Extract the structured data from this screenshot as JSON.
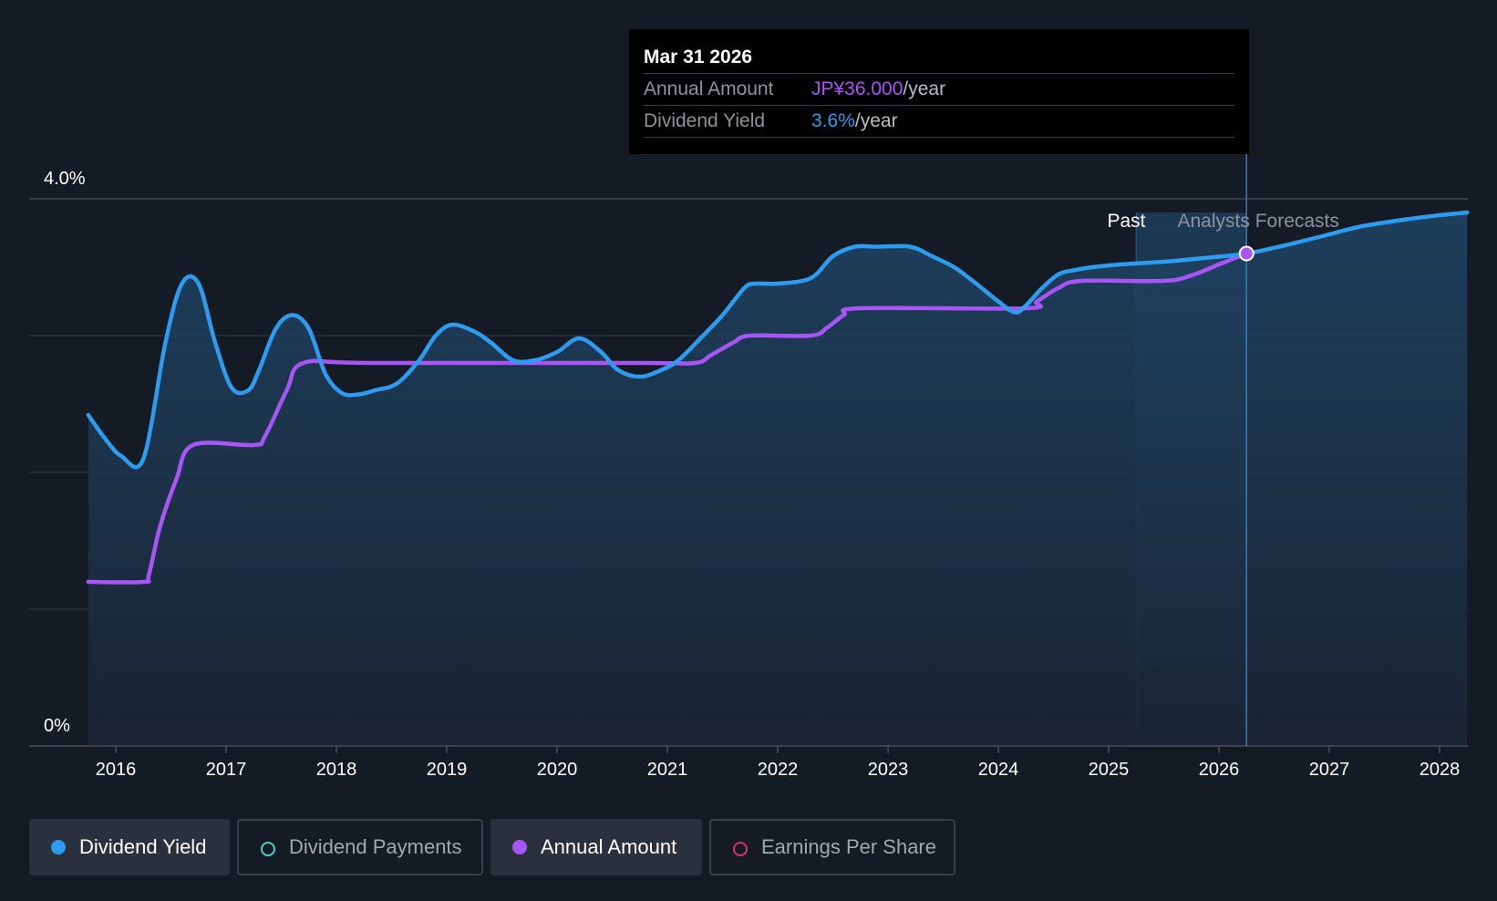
{
  "tooltip": {
    "date": "Mar 31 2026",
    "annual_label": "Annual Amount",
    "annual_value": "JP¥36.000",
    "annual_unit": "/year",
    "yield_label": "Dividend Yield",
    "yield_value": "3.6%",
    "yield_unit": "/year"
  },
  "legend": [
    {
      "label": "Dividend Yield",
      "active": true,
      "filled": true,
      "color": "#2d9cf0"
    },
    {
      "label": "Dividend Payments",
      "active": false,
      "filled": false,
      "color": "#4fd1c5"
    },
    {
      "label": "Annual Amount",
      "active": true,
      "filled": true,
      "color": "#a855f7"
    },
    {
      "label": "Earnings Per Share",
      "active": false,
      "filled": false,
      "color": "#d6336c"
    }
  ],
  "colors": {
    "background": "#151b25",
    "yield": "#2d9cf0",
    "annual": "#a855f7",
    "grid": "#2c3440",
    "axis": "#4a515c"
  },
  "chart_data": {
    "type": "line",
    "y_tick_labels": [
      "0%",
      "4.0%"
    ],
    "ylim": [
      0,
      4.0
    ],
    "xlim": [
      2015.75,
      2028.25
    ],
    "x_tick_labels": [
      "2016",
      "2017",
      "2018",
      "2019",
      "2020",
      "2021",
      "2022",
      "2023",
      "2024",
      "2025",
      "2026",
      "2027",
      "2028"
    ],
    "x_ticks": [
      2016,
      2017,
      2018,
      2019,
      2020,
      2021,
      2022,
      2023,
      2024,
      2025,
      2026,
      2027,
      2028
    ],
    "grid": true,
    "region_labels": {
      "past": "Past",
      "forecast": "Analysts Forecasts"
    },
    "past_end": 2025.5,
    "forecast_band_start": 2025.25,
    "highlight_x": 2026.25,
    "highlight_y": 3.6,
    "series": [
      {
        "name": "Dividend Yield",
        "x": [
          2015.75,
          2015.9,
          2016.05,
          2016.25,
          2016.45,
          2016.6,
          2016.75,
          2016.9,
          2017.05,
          2017.2,
          2017.3,
          2017.45,
          2017.6,
          2017.75,
          2017.9,
          2018.05,
          2018.2,
          2018.35,
          2018.55,
          2018.75,
          2018.9,
          2019.05,
          2019.25,
          2019.4,
          2019.6,
          2019.8,
          2020.0,
          2020.2,
          2020.4,
          2020.55,
          2020.75,
          2020.95,
          2021.1,
          2021.3,
          2021.5,
          2021.7,
          2021.8,
          2022.0,
          2022.3,
          2022.5,
          2022.7,
          2022.9,
          2023.2,
          2023.4,
          2023.6,
          2023.8,
          2024.0,
          2024.15,
          2024.25,
          2024.4,
          2024.55,
          2024.7,
          2024.85,
          2025.1,
          2025.5,
          2025.9,
          2026.25,
          2026.6,
          2027.0,
          2027.3,
          2027.7,
          2028.0,
          2028.25
        ],
        "y": [
          2.42,
          2.25,
          2.12,
          2.1,
          2.95,
          3.38,
          3.38,
          2.95,
          2.62,
          2.6,
          2.75,
          3.05,
          3.15,
          3.05,
          2.72,
          2.58,
          2.57,
          2.6,
          2.65,
          2.82,
          3.0,
          3.08,
          3.03,
          2.95,
          2.82,
          2.82,
          2.88,
          2.98,
          2.88,
          2.75,
          2.7,
          2.75,
          2.82,
          2.98,
          3.15,
          3.35,
          3.38,
          3.38,
          3.42,
          3.58,
          3.65,
          3.65,
          3.65,
          3.58,
          3.5,
          3.38,
          3.25,
          3.17,
          3.22,
          3.35,
          3.45,
          3.48,
          3.5,
          3.52,
          3.54,
          3.57,
          3.6,
          3.66,
          3.74,
          3.8,
          3.85,
          3.88,
          3.9
        ]
      },
      {
        "name": "Annual Amount",
        "x": [
          2015.75,
          2016.25,
          2016.3,
          2016.4,
          2016.55,
          2016.7,
          2017.25,
          2017.35,
          2017.55,
          2017.7,
          2018.3,
          2020.75,
          2021.25,
          2021.4,
          2021.6,
          2021.75,
          2022.3,
          2022.45,
          2022.6,
          2022.75,
          2024.25,
          2024.35,
          2024.55,
          2024.75,
          2025.5,
          2025.75,
          2026.0,
          2026.25
        ],
        "y": [
          1.2,
          1.2,
          1.25,
          1.6,
          1.95,
          2.2,
          2.2,
          2.26,
          2.6,
          2.8,
          2.8,
          2.8,
          2.8,
          2.86,
          2.95,
          3.0,
          3.0,
          3.06,
          3.15,
          3.2,
          3.2,
          3.25,
          3.35,
          3.4,
          3.4,
          3.44,
          3.52,
          3.6
        ]
      }
    ]
  }
}
